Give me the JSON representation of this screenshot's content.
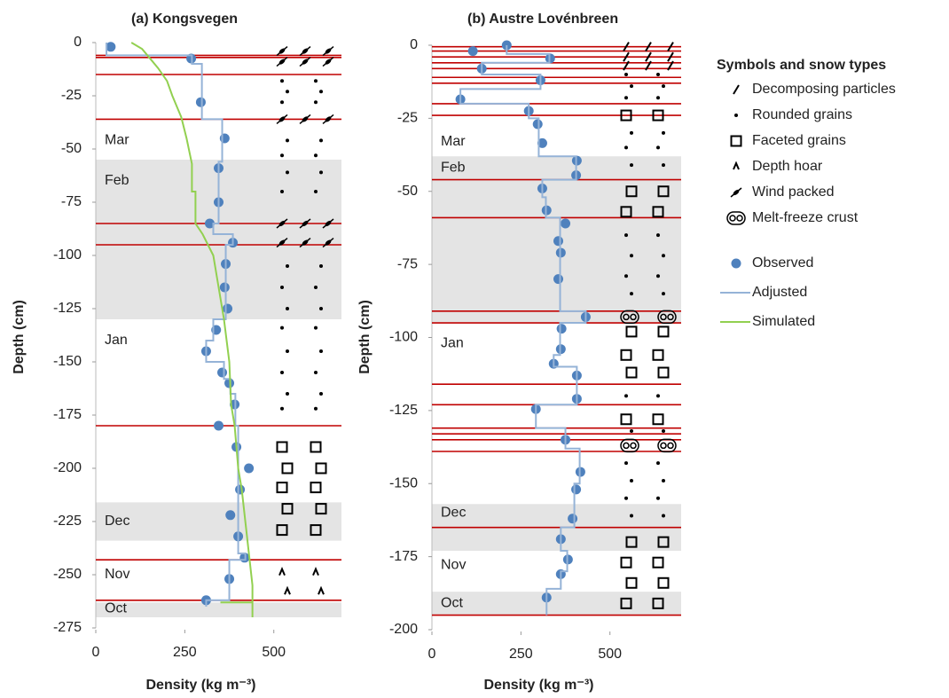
{
  "chart_data": [
    {
      "type": "scatter",
      "title": "(a)   Kongsvegen",
      "x_label": "Density (kg m⁻³)",
      "y_label": "Depth (cm)",
      "xlim": [
        0,
        690
      ],
      "ylim": [
        -275,
        0
      ],
      "xticks": [
        0,
        250,
        500
      ],
      "yticks": [
        0,
        -25,
        -50,
        -75,
        -100,
        -125,
        -150,
        -175,
        -200,
        -225,
        -250,
        -275
      ],
      "series": [
        {
          "name": "Observed",
          "color": "#4f81bd",
          "x": [
            42,
            268,
            295,
            362,
            345,
            345,
            320,
            385,
            365,
            362,
            370,
            338,
            310,
            355,
            375,
            390,
            345,
            395,
            430,
            405,
            378,
            400,
            418,
            375,
            310
          ],
          "values": [
            -2,
            -7.5,
            -28,
            -45,
            -59,
            -75,
            -85,
            -94,
            -104,
            -115,
            -125,
            -135,
            -145,
            -155,
            -160,
            -170,
            -180,
            -190,
            -200,
            -210,
            -222,
            -232,
            -242,
            -252,
            -262
          ]
        },
        {
          "name": "Adjusted",
          "color": "#95b3d7",
          "x": [
            30,
            30,
            270,
            270,
            298,
            298,
            355,
            355,
            345,
            345,
            330,
            330,
            385,
            385,
            365,
            365,
            330,
            330,
            310,
            310,
            360,
            360,
            378,
            378,
            392,
            392,
            400,
            400,
            420,
            420,
            375,
            375,
            310,
            310
          ],
          "values": [
            0,
            -6,
            -6,
            -10,
            -10,
            -36,
            -36,
            -56,
            -56,
            -85,
            -85,
            -90,
            -90,
            -95,
            -95,
            -130,
            -130,
            -140,
            -140,
            -150,
            -150,
            -158,
            -158,
            -165,
            -165,
            -180,
            -180,
            -240,
            -240,
            -243,
            -243,
            -262,
            -262,
            -265
          ]
        },
        {
          "name": "Simulated",
          "color": "#92d050",
          "x": [
            100,
            130,
            155,
            175,
            200,
            215,
            240,
            255,
            270,
            270,
            280,
            280,
            300,
            330,
            345,
            360,
            375,
            380,
            390,
            400,
            410,
            420,
            430,
            440,
            440,
            350,
            440,
            440
          ],
          "values": [
            0,
            -3,
            -8,
            -12,
            -18,
            -25,
            -35,
            -45,
            -57,
            -70,
            -70,
            -85,
            -90,
            -100,
            -115,
            -130,
            -150,
            -170,
            -180,
            -200,
            -210,
            -225,
            -240,
            -255,
            -263,
            -263,
            -263,
            -270
          ]
        }
      ],
      "layer_boundaries": [
        -6,
        -7,
        -15,
        -36,
        -85,
        -95,
        -180,
        -243,
        -262
      ],
      "shaded": [
        [
          -55,
          -130
        ],
        [
          -216,
          -234
        ],
        [
          -263,
          -270
        ]
      ],
      "months": [
        {
          "label": "Mar",
          "depth": -46
        },
        {
          "label": "Feb",
          "depth": -65
        },
        {
          "label": "Jan",
          "depth": -140
        },
        {
          "label": "Dec",
          "depth": -225
        },
        {
          "label": "Nov",
          "depth": -250
        },
        {
          "label": "Oct",
          "depth": -266
        }
      ],
      "snow_layers": [
        [],
        [
          -18,
          -23,
          -28,
          -46,
          -53,
          -61,
          -70,
          -105,
          -115,
          -125,
          -134,
          -145,
          -155,
          -165,
          -172
        ],
        [
          -190,
          -200,
          -209,
          -219,
          -229
        ],
        [
          -249,
          -258
        ],
        [
          -4,
          -9,
          -36,
          -85,
          -94
        ],
        []
      ]
    },
    {
      "type": "scatter",
      "title": "(b)   Austre Lovénbreen",
      "x_label": "Density (kg m⁻³)",
      "y_label": "Depth (cm)",
      "xlim": [
        0,
        700
      ],
      "ylim": [
        -200,
        0
      ],
      "xticks": [
        0,
        250,
        500
      ],
      "yticks": [
        0,
        -25,
        -50,
        -75,
        -100,
        -125,
        -150,
        -175,
        -200
      ],
      "series": [
        {
          "color": "#4f81bd",
          "x": [
            210,
            115,
            332,
            140,
            305,
            80,
            272,
            297,
            310,
            407,
            405,
            310,
            322,
            375,
            355,
            362,
            355,
            432,
            364,
            362,
            342,
            407,
            407,
            292,
            375,
            417,
            405,
            395,
            362,
            382,
            362,
            322
          ],
          "values": [
            0,
            -2,
            -4.5,
            -8,
            -12,
            -18.5,
            -22.5,
            -27,
            -33.5,
            -39.5,
            -44.5,
            -49,
            -56.5,
            -61,
            -67,
            -71,
            -80,
            -93,
            -97,
            -104,
            -109,
            -113,
            -121,
            -124.5,
            -135,
            -146,
            -152,
            -162,
            -169,
            -176,
            -181,
            -189
          ]
        },
        {
          "color": "#95b3d7",
          "x": [
            210,
            210,
            330,
            330,
            140,
            140,
            305,
            305,
            80,
            80,
            272,
            272,
            300,
            300,
            405,
            405,
            310,
            310,
            320,
            320,
            360,
            360,
            432,
            432,
            360,
            360,
            342,
            342,
            407,
            407,
            292,
            292,
            375,
            375,
            415,
            415,
            400,
            400,
            362,
            362,
            380,
            380,
            362,
            362,
            322,
            322
          ],
          "values": [
            0,
            -3,
            -3,
            -6,
            -6,
            -10,
            -10,
            -15,
            -15,
            -20,
            -20,
            -25,
            -25,
            -38,
            -38,
            -46,
            -46,
            -52,
            -52,
            -59,
            -59,
            -91,
            -91,
            -95,
            -95,
            -106,
            -106,
            -110,
            -110,
            -123,
            -123,
            -131,
            -131,
            -138,
            -138,
            -150,
            -150,
            -165,
            -165,
            -173,
            -173,
            -180,
            -180,
            -186,
            -186,
            -195
          ]
        }
      ],
      "layer_boundaries": [
        -0.5,
        -2,
        -4,
        -6,
        -8,
        -11,
        -13,
        -20,
        -24,
        -46,
        -59,
        -91,
        -95,
        -116,
        -123,
        -131,
        -133,
        -135,
        -139,
        -165,
        -195
      ],
      "shaded": [
        [
          -38,
          -95
        ],
        [
          -157,
          -173
        ],
        [
          -187,
          -195
        ]
      ],
      "months": [
        {
          "label": "Mar",
          "depth": -33
        },
        {
          "label": "Feb",
          "depth": -42
        },
        {
          "label": "Jan",
          "depth": -102
        },
        {
          "label": "Dec",
          "depth": -160
        },
        {
          "label": "Nov",
          "depth": -178
        },
        {
          "label": "Oct",
          "depth": -191
        }
      ],
      "snow_layers": [
        [
          -0.5,
          -4,
          -7
        ],
        [
          -10,
          -14,
          -18,
          -30,
          -35,
          -41,
          -65,
          -72,
          -79,
          -85,
          -120,
          -132,
          -143,
          -149,
          -155,
          -161
        ],
        [
          -24,
          -50,
          -57,
          -98,
          -106,
          -112,
          -128,
          -170,
          -177,
          -184,
          -191
        ],
        [],
        [],
        [
          -93,
          -137
        ]
      ]
    }
  ],
  "snow_types": {
    "title": "Symbols and snow types",
    "items": [
      "Decomposing particles",
      "Rounded grains",
      "Faceted grains",
      "Depth hoar",
      "Wind packed",
      "Melt-freeze crust"
    ]
  }
}
